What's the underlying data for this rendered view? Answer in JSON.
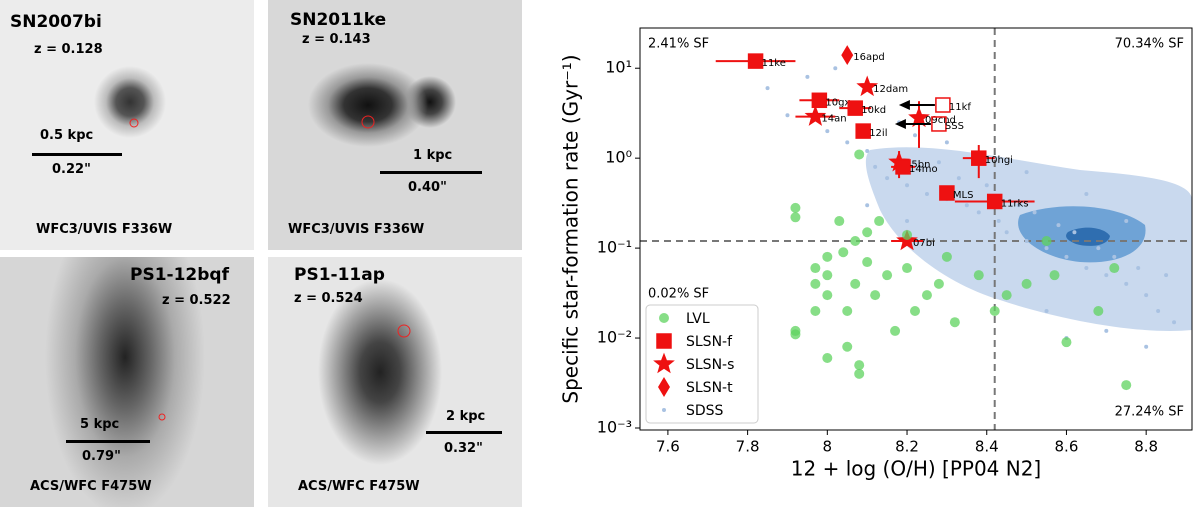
{
  "image_panels": [
    {
      "name": "SN2007bi",
      "redshift": "z = 0.128",
      "scale_kpc": "0.5 kpc",
      "scale_arcsec": "0.22\"",
      "filter": "WFC3/UVIS F336W"
    },
    {
      "name": "SN2011ke",
      "redshift": "z = 0.143",
      "scale_kpc": "1 kpc",
      "scale_arcsec": "0.40\"",
      "filter": "WFC3/UVIS F336W"
    },
    {
      "name": "PS1-12bqf",
      "redshift": "z = 0.522",
      "scale_kpc": "5 kpc",
      "scale_arcsec": "0.79\"",
      "filter": "ACS/WFC F475W"
    },
    {
      "name": "PS1-11ap",
      "redshift": "z = 0.524",
      "scale_kpc": "2 kpc",
      "scale_arcsec": "0.32\"",
      "filter": "ACS/WFC F475W"
    }
  ],
  "chart_data": {
    "type": "scatter",
    "x_label": "12 + log (O/H) [PP04 N2]",
    "y_label": "Specific star-formation rate (Gyr⁻¹)",
    "xlim": [
      7.53,
      8.915
    ],
    "ylim": [
      0.00095,
      28
    ],
    "y_scale": "log",
    "xticks": [
      7.6,
      7.8,
      8.0,
      8.2,
      8.4,
      8.6,
      8.8
    ],
    "yticks": [
      {
        "value": 0.001,
        "label": "10⁻³"
      },
      {
        "value": 0.01,
        "label": "10⁻²"
      },
      {
        "value": 0.1,
        "label": "10⁻¹"
      },
      {
        "value": 1,
        "label": "10⁰"
      },
      {
        "value": 10,
        "label": "10¹"
      }
    ],
    "reference_lines": {
      "x": 8.42,
      "y": 0.12
    },
    "annotations": [
      {
        "text": "2.41% SF",
        "corner": "upper left"
      },
      {
        "text": "70.34% SF",
        "corner": "upper right"
      },
      {
        "text": "0.02% SF",
        "corner": "lower left"
      },
      {
        "text": "27.24% SF",
        "corner": "lower right"
      }
    ],
    "legend": "lower left",
    "series": [
      {
        "name": "LVL",
        "color": "#5fd35f",
        "marker": "circle",
        "x": [
          7.92,
          7.92,
          7.92,
          7.92,
          7.97,
          7.97,
          7.97,
          8.0,
          8.0,
          8.0,
          8.0,
          8.03,
          8.04,
          8.05,
          8.05,
          8.07,
          8.07,
          8.08,
          8.08,
          8.1,
          8.1,
          8.12,
          8.13,
          8.15,
          8.17,
          8.2,
          8.22,
          8.25,
          8.28,
          8.3,
          8.32,
          8.38,
          8.45,
          8.5,
          8.55,
          8.57,
          8.6,
          8.68,
          8.72,
          8.75,
          8.08,
          8.2,
          8.42
        ],
        "values": [
          0.28,
          0.22,
          0.012,
          0.011,
          0.06,
          0.04,
          0.02,
          0.08,
          0.05,
          0.03,
          0.006,
          0.2,
          0.09,
          0.02,
          0.008,
          0.12,
          0.04,
          0.005,
          0.004,
          0.15,
          0.07,
          0.03,
          0.2,
          0.05,
          0.012,
          0.06,
          0.02,
          0.03,
          0.04,
          0.08,
          0.015,
          0.05,
          0.03,
          0.04,
          0.12,
          0.05,
          0.009,
          0.02,
          0.06,
          0.003,
          1.1,
          0.14,
          0.02
        ]
      },
      {
        "name": "SLSN-f",
        "color": "#ee1111",
        "marker": "square",
        "x": [
          7.82,
          7.98,
          8.07,
          8.09,
          8.19,
          8.38,
          8.3,
          8.42,
          8.29,
          8.28
        ],
        "values": [
          12,
          4.4,
          3.6,
          2.0,
          0.8,
          1.0,
          0.41,
          0.33,
          3.9,
          2.4
        ],
        "xerr": [
          0.1,
          0.05,
          0.04,
          null,
          0.03,
          0.04,
          null,
          0.1,
          null,
          null
        ],
        "yerr": [
          null,
          null,
          null,
          null,
          null,
          0.4,
          null,
          null,
          null,
          null
        ],
        "hollow": [
          false,
          false,
          false,
          false,
          false,
          false,
          false,
          false,
          true,
          true
        ],
        "point_labels": [
          "11ke",
          "10gx",
          "10kd",
          "12il",
          "14mo",
          "10hgi",
          "MLS",
          "11rks",
          "11kf",
          "SSS"
        ]
      },
      {
        "name": "SLSN-s",
        "color": "#ee1111",
        "marker": "star",
        "x": [
          8.1,
          7.97,
          8.18,
          8.2,
          8.23
        ],
        "values": [
          6.2,
          2.9,
          0.9,
          0.12,
          2.8
        ],
        "xerr": [
          null,
          0.05,
          null,
          0.04,
          null
        ],
        "yerr": [
          null,
          null,
          0.3,
          null,
          1.5
        ],
        "hollow": [
          false,
          false,
          false,
          false,
          false
        ],
        "point_labels": [
          "12dam",
          "14an",
          "15bn",
          "07bi",
          "09cnd"
        ]
      },
      {
        "name": "SLSN-t",
        "color": "#ee1111",
        "marker": "diamond",
        "x": [
          8.05
        ],
        "values": [
          14
        ],
        "xerr": [
          null
        ],
        "yerr": [
          null
        ],
        "hollow": [
          false
        ],
        "point_labels": [
          "16apd"
        ]
      },
      {
        "name": "SDSS",
        "color": "#a9c2e2",
        "marker": "dot",
        "x": [
          7.85,
          7.9,
          7.95,
          8.0,
          8.02,
          8.05,
          8.08,
          8.1,
          8.12,
          8.15,
          8.18,
          8.2,
          8.22,
          8.25,
          8.28,
          8.3,
          8.33,
          8.35,
          8.38,
          8.4,
          8.43,
          8.45,
          8.48,
          8.5,
          8.52,
          8.55,
          8.58,
          8.6,
          8.62,
          8.65,
          8.68,
          8.7,
          8.72,
          8.75,
          8.78,
          8.8,
          8.83,
          8.85,
          8.87,
          8.6,
          8.7,
          8.8,
          8.5,
          8.4,
          8.3,
          8.2,
          8.1,
          8.65,
          8.75,
          8.55
        ],
        "values": [
          6,
          3,
          8,
          2,
          10,
          1.5,
          4,
          1.2,
          0.8,
          0.6,
          2.5,
          0.5,
          1.8,
          0.4,
          0.9,
          0.35,
          0.6,
          0.3,
          0.25,
          0.5,
          0.2,
          0.15,
          0.3,
          0.12,
          0.25,
          0.1,
          0.18,
          0.08,
          0.15,
          0.06,
          0.1,
          0.05,
          0.08,
          0.04,
          0.06,
          0.03,
          0.02,
          0.05,
          0.015,
          0.01,
          0.012,
          0.008,
          0.7,
          1.0,
          1.5,
          0.2,
          0.3,
          0.4,
          0.2,
          0.02
        ]
      }
    ]
  }
}
